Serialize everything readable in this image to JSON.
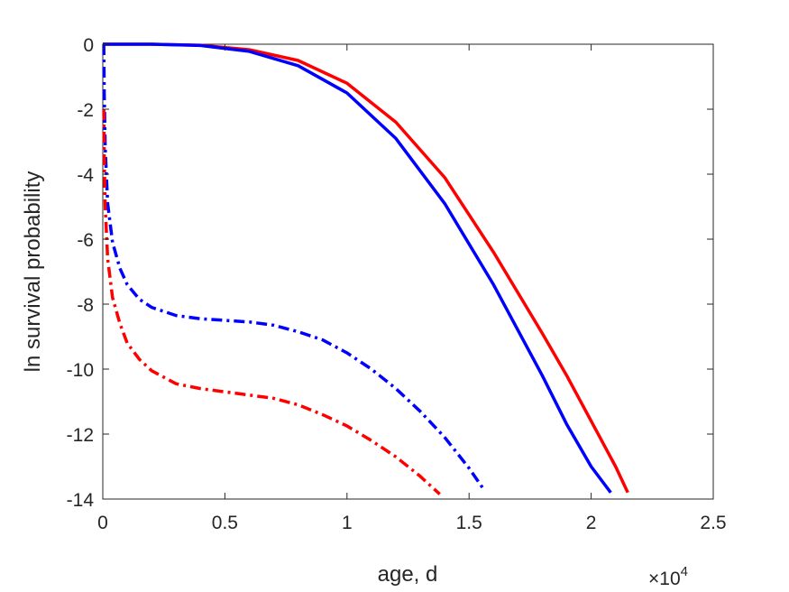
{
  "chart_data": {
    "type": "line",
    "xlabel": "age, d",
    "ylabel": "ln survival probability",
    "x_exponent_label": "×10",
    "x_exponent_power": "4",
    "xlim": [
      0,
      25000
    ],
    "ylim": [
      -14,
      0
    ],
    "x_ticks": [
      0,
      5000,
      10000,
      15000,
      20000,
      25000
    ],
    "x_tick_labels": [
      "0",
      "0.5",
      "1",
      "1.5",
      "2",
      "2.5"
    ],
    "y_ticks": [
      0,
      -2,
      -4,
      -6,
      -8,
      -10,
      -12,
      -14
    ],
    "y_tick_labels": [
      "0",
      "-2",
      "-4",
      "-6",
      "-8",
      "-10",
      "-12",
      "-14"
    ],
    "grid": false,
    "series": [
      {
        "color": "#ff0000",
        "style": "solid",
        "points": [
          [
            0,
            0
          ],
          [
            2000,
            0
          ],
          [
            4000,
            -0.03
          ],
          [
            6000,
            -0.17
          ],
          [
            8000,
            -0.5
          ],
          [
            10000,
            -1.2
          ],
          [
            12000,
            -2.4
          ],
          [
            14000,
            -4.1
          ],
          [
            16000,
            -6.4
          ],
          [
            18000,
            -8.9
          ],
          [
            19000,
            -10.2
          ],
          [
            20000,
            -11.6
          ],
          [
            21000,
            -13.0
          ],
          [
            21500,
            -13.8
          ]
        ]
      },
      {
        "color": "#0000ff",
        "style": "solid",
        "points": [
          [
            0,
            0
          ],
          [
            2000,
            0
          ],
          [
            4000,
            -0.04
          ],
          [
            6000,
            -0.22
          ],
          [
            8000,
            -0.66
          ],
          [
            10000,
            -1.5
          ],
          [
            12000,
            -2.9
          ],
          [
            14000,
            -4.9
          ],
          [
            16000,
            -7.4
          ],
          [
            18000,
            -10.2
          ],
          [
            19000,
            -11.7
          ],
          [
            20000,
            -13.0
          ],
          [
            20800,
            -13.8
          ]
        ]
      },
      {
        "color": "#0000ff",
        "style": "dashdot",
        "points": [
          [
            40,
            0
          ],
          [
            60,
            -1.5
          ],
          [
            100,
            -3.2
          ],
          [
            200,
            -4.9
          ],
          [
            400,
            -6.1
          ],
          [
            700,
            -6.9
          ],
          [
            1000,
            -7.4
          ],
          [
            1500,
            -7.85
          ],
          [
            2000,
            -8.1
          ],
          [
            3000,
            -8.35
          ],
          [
            4000,
            -8.45
          ],
          [
            5000,
            -8.5
          ],
          [
            6000,
            -8.55
          ],
          [
            7000,
            -8.65
          ],
          [
            8000,
            -8.85
          ],
          [
            9000,
            -9.1
          ],
          [
            10000,
            -9.5
          ],
          [
            11000,
            -10.0
          ],
          [
            12000,
            -10.6
          ],
          [
            13000,
            -11.3
          ],
          [
            14000,
            -12.1
          ],
          [
            15000,
            -13.05
          ],
          [
            15600,
            -13.7
          ]
        ]
      },
      {
        "color": "#ff0000",
        "style": "dashdot",
        "points": [
          [
            40,
            -2.0
          ],
          [
            60,
            -3.5
          ],
          [
            100,
            -5.0
          ],
          [
            200,
            -6.6
          ],
          [
            400,
            -7.8
          ],
          [
            700,
            -8.6
          ],
          [
            1000,
            -9.2
          ],
          [
            1500,
            -9.7
          ],
          [
            2000,
            -10.05
          ],
          [
            3000,
            -10.45
          ],
          [
            4000,
            -10.6
          ],
          [
            5000,
            -10.7
          ],
          [
            6000,
            -10.8
          ],
          [
            7000,
            -10.9
          ],
          [
            8000,
            -11.1
          ],
          [
            9000,
            -11.4
          ],
          [
            10000,
            -11.75
          ],
          [
            11000,
            -12.2
          ],
          [
            12000,
            -12.7
          ],
          [
            13000,
            -13.3
          ],
          [
            13800,
            -13.85
          ]
        ]
      }
    ]
  }
}
